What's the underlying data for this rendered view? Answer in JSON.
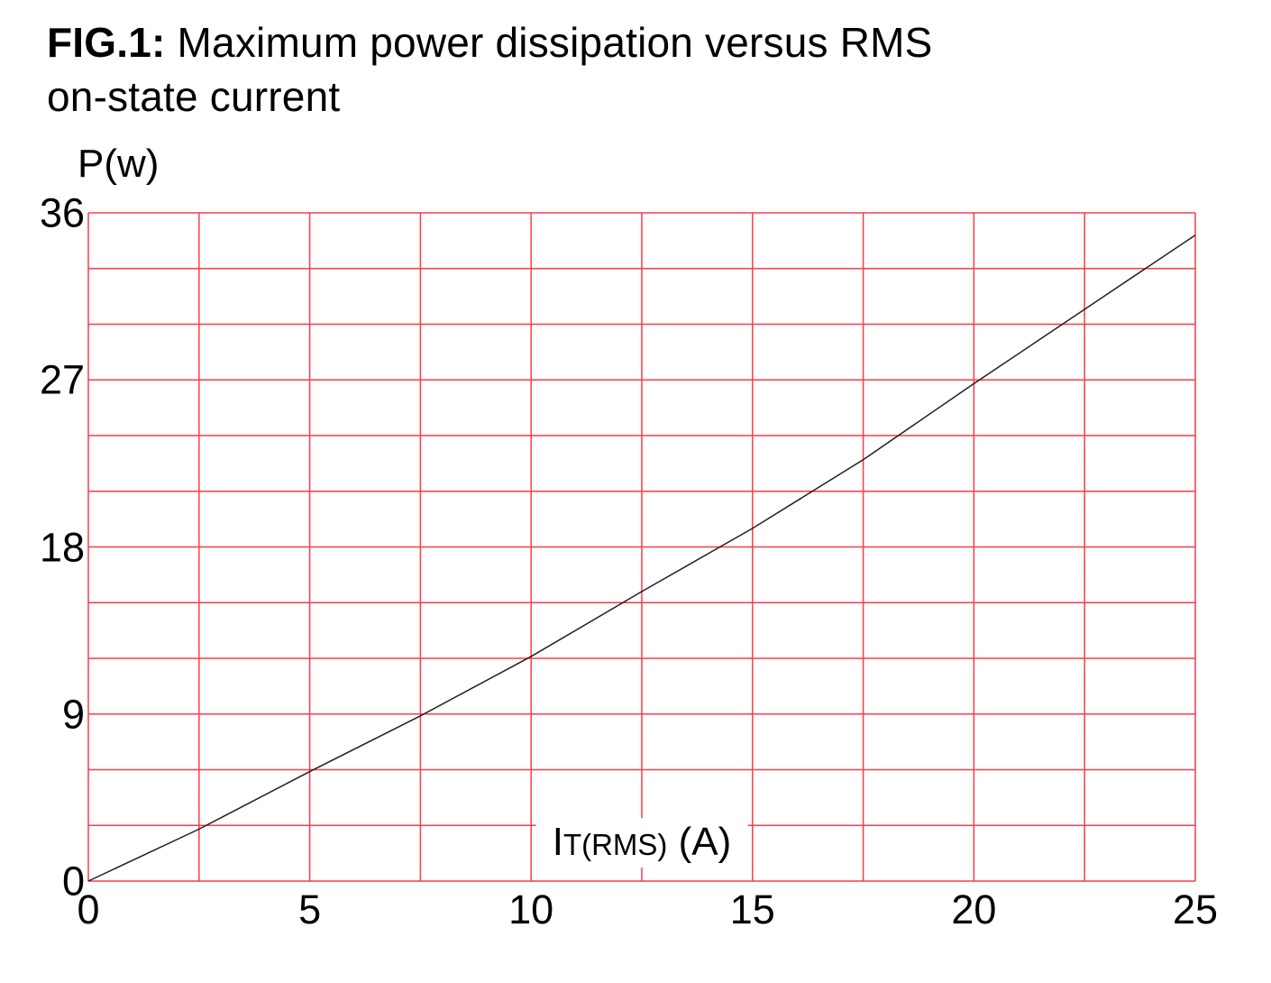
{
  "chart_data": {
    "type": "line",
    "title": {
      "fig": "FIG.1:",
      "line1": "Maximum power dissipation versus RMS",
      "line2": "on-state current"
    },
    "ylabel": "P(w)",
    "xlabel_parts": {
      "main": "I",
      "sub": "T(RMS)",
      "unit": "(A)"
    },
    "xlim": [
      0,
      25
    ],
    "ylim": [
      0,
      36
    ],
    "x_grid_step": 2.5,
    "y_grid_step": 3,
    "x_ticks": [
      0,
      5,
      10,
      15,
      20,
      25
    ],
    "y_ticks": [
      0,
      9,
      18,
      27,
      36
    ],
    "grid": true,
    "legend": false,
    "grid_color": "#fb3b49",
    "curve_color": "#221f1f",
    "series": [
      {
        "x": [
          0,
          2.5,
          5,
          7.5,
          10,
          12.5,
          15,
          17.5,
          20,
          22.5,
          25
        ],
        "y": [
          0,
          2.8,
          5.9,
          8.9,
          12.1,
          15.6,
          19.0,
          22.7,
          26.8,
          30.8,
          34.8
        ]
      }
    ]
  }
}
